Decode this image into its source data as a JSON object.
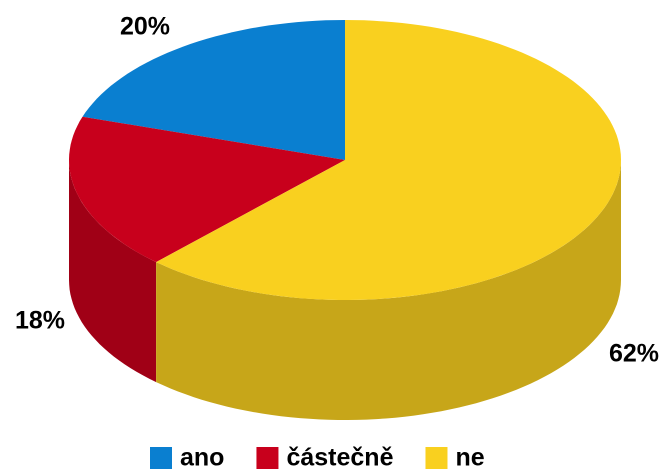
{
  "chart_data": {
    "type": "pie",
    "three_d": true,
    "categories": [
      "ano",
      "částečně",
      "ne"
    ],
    "values": [
      20,
      18,
      62
    ],
    "value_labels": [
      "20%",
      "18%",
      "62%"
    ],
    "colors": [
      "#0a7fd0",
      "#c8001c",
      "#f9d01f"
    ],
    "legend": "bottom"
  }
}
